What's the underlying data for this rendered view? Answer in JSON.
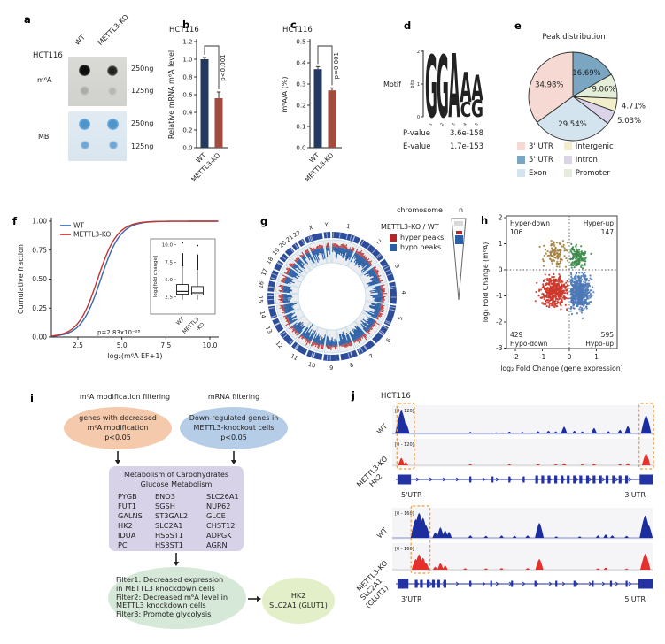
{
  "panels": {
    "a": {
      "letter": "a",
      "cell_line": "HCT116",
      "col_labels": [
        "WT",
        "METTL3-KO"
      ],
      "rows": [
        {
          "blot": "m⁶A",
          "amounts": [
            "250ng",
            "125ng"
          ]
        },
        {
          "blot": "MB",
          "amounts": [
            "250ng",
            "125ng"
          ]
        }
      ]
    },
    "b": {
      "letter": "b"
    },
    "c": {
      "letter": "c"
    },
    "d": {
      "letter": "d",
      "motif_label": "Motif",
      "stats": [
        {
          "label": "P-value",
          "value": "3.6e-158"
        },
        {
          "label": "E-value",
          "value": "1.7e-153"
        }
      ]
    },
    "e": {
      "letter": "e"
    },
    "f": {
      "letter": "f"
    },
    "g": {
      "letter": "g",
      "scale_title": "chromosome",
      "scale_n": "n",
      "ratio_label": "METTL3-KO / WT",
      "legend": [
        {
          "label": "hyper peaks",
          "color": "#b3262a"
        },
        {
          "label": "hypo peaks",
          "color": "#2a5fa5"
        }
      ]
    },
    "h": {
      "letter": "h"
    },
    "i": {
      "letter": "i",
      "left_header": "m⁶A modification filtering",
      "right_header": "mRNA filtering",
      "left_ellipse": [
        "genes with decreased",
        "m⁶A modification",
        "p<0.05"
      ],
      "right_ellipse": [
        "Down-regulated genes in",
        "METTL3-knockout cells",
        "p<0.05"
      ],
      "box_title": [
        "Metabolism of Carbohydrates",
        "Glucose Metabolism"
      ],
      "gene_columns": [
        [
          "PYGB",
          "FUT1",
          "GALNS",
          "HK2",
          "IDUA",
          "PC"
        ],
        [
          "ENO3",
          "SGSH",
          "ST3GAL2",
          "SLC2A1",
          "HS6ST1",
          "HS3ST1"
        ],
        [
          "SLC26A1",
          "NUP62",
          "GLCE",
          "CHST12",
          "ADPGK",
          "AGRN"
        ]
      ],
      "filter_lines": [
        "Filter1: Decreased expression",
        "in METTL3 knockdown cells",
        "Filter2: Decreased m⁶A level in",
        "METTL3 knockdown cells",
        "Filter3: Promote glycolysis"
      ],
      "result_lines": [
        "HK2",
        "SLC2A1 (GLUT1)"
      ]
    },
    "j": {
      "letter": "j",
      "cell_line": "HCT116"
    }
  },
  "chart_data": {
    "b": {
      "type": "bar",
      "title": "HCT116",
      "ylabel": "Relative mRNA m⁶A level",
      "categories": [
        "WT",
        "METTL3-KO"
      ],
      "values": [
        1.0,
        0.56
      ],
      "errors": [
        0.02,
        0.07
      ],
      "ylim": [
        0,
        1.2
      ],
      "ytick_step": 0.2,
      "significance": "p<0.001",
      "colors": [
        "#23395f",
        "#a34b3c"
      ]
    },
    "c": {
      "type": "bar",
      "title": "HCT116",
      "ylabel": "m⁶A/A (%)",
      "categories": [
        "WT",
        "METTL3-KO"
      ],
      "values": [
        0.37,
        0.27
      ],
      "errors": [
        0.012,
        0.012
      ],
      "ylim": [
        0,
        0.5
      ],
      "ytick_step": 0.1,
      "significance": "p=0.001",
      "colors": [
        "#23395f",
        "#a34b3c"
      ]
    },
    "d": {
      "type": "motif_logo",
      "ylabel": "bits",
      "yticks": [
        0,
        1,
        2
      ],
      "xticks": [
        "1",
        "2",
        "3",
        "4",
        "5"
      ],
      "positions": [
        [
          {
            "c": "G",
            "h": 1.9,
            "color": "#eba23c"
          }
        ],
        [
          {
            "c": "G",
            "h": 1.9,
            "color": "#eba23c"
          }
        ],
        [
          {
            "c": "A",
            "h": 1.95,
            "color": "#cc2a25"
          }
        ],
        [
          {
            "c": "A",
            "h": 0.92,
            "color": "#cc2a25"
          },
          {
            "c": "C",
            "h": 0.46,
            "color": "#2a4db5"
          }
        ],
        [
          {
            "c": "A",
            "h": 0.78,
            "color": "#cc2a25"
          },
          {
            "c": "G",
            "h": 0.52,
            "color": "#eba23c"
          }
        ]
      ]
    },
    "e": {
      "type": "pie",
      "title": "Peak distribution",
      "slices": [
        {
          "label": "5' UTR",
          "value": 16.69,
          "pct": "16.69%",
          "color": "#7aa6c2",
          "inside": true,
          "lr": 0.62
        },
        {
          "label": "Promoter",
          "value": 9.06,
          "pct": "9.06%",
          "color": "#e4eed9",
          "inside": true,
          "lr": 0.72
        },
        {
          "label": "Intergenic",
          "value": 4.71,
          "pct": "4.71%",
          "color": "#f1eec9",
          "inside": false,
          "lr": 1.1
        },
        {
          "label": "Intron",
          "value": 5.03,
          "pct": "5.03%",
          "color": "#dbd4e8",
          "inside": false,
          "lr": 1.12
        },
        {
          "label": "Exon",
          "value": 29.54,
          "pct": "29.54%",
          "color": "#d3e4ef",
          "inside": true,
          "lr": 0.62
        },
        {
          "label": "3' UTR",
          "value": 34.98,
          "pct": "34.98%",
          "color": "#f6d9d2",
          "inside": true,
          "lr": 0.6
        }
      ],
      "legend_order": [
        "3' UTR",
        "5' UTR",
        "Exon",
        "Intergenic",
        "Intron",
        "Promoter"
      ]
    },
    "f": {
      "type": "cdf",
      "xlabel": "log₂(m⁶A EF+1)",
      "ylabel": "Cumulative fraction",
      "pvalue": "p=2.83x10⁻²⁸",
      "xticks": [
        2.5,
        5.0,
        7.5,
        10.0
      ],
      "yticks": [
        0.0,
        0.25,
        0.5,
        0.75,
        1.0
      ],
      "series": [
        {
          "name": "WT",
          "color": "#3a68ac",
          "mu": 3.8,
          "s": 0.56
        },
        {
          "name": "METTL3-KO",
          "color": "#c13430",
          "mu": 3.62,
          "s": 0.56
        }
      ],
      "inset": {
        "ylabel": "log₂[fold change]",
        "yticks": [
          2.5,
          5.0,
          7.5,
          10.0
        ],
        "boxes": [
          {
            "label_lines": [
              "WT"
            ],
            "q1": 2.9,
            "q3": 4.3,
            "med": 3.3,
            "lo": 2.1,
            "hi": 6.9,
            "strip": 8.8,
            "dot": 10.3
          },
          {
            "label_lines": [
              "METTL3",
              "-KO"
            ],
            "q1": 2.8,
            "q3": 4.0,
            "med": 3.1,
            "lo": 2.1,
            "hi": 6.4,
            "strip": 8.6,
            "dot": 9.9
          }
        ]
      }
    },
    "g": {
      "type": "circos",
      "chromosomes": [
        "1",
        "2",
        "3",
        "4",
        "5",
        "6",
        "7",
        "8",
        "9",
        "10",
        "11",
        "12",
        "13",
        "14",
        "15",
        "16",
        "17",
        "18",
        "19",
        "20",
        "21",
        "22",
        "X",
        "Y"
      ],
      "sizes": [
        249,
        243,
        198,
        190,
        182,
        171,
        159,
        145,
        138,
        134,
        135,
        133,
        115,
        107,
        102,
        90,
        83,
        80,
        59,
        63,
        48,
        51,
        155,
        57
      ],
      "hyper_color": "#b3262a",
      "hypo_color": "#2a5fa5",
      "ideogram_color": "#2d4d9a"
    },
    "h": {
      "type": "scatter",
      "xlabel": "log₂ Fold Change (gene expression)",
      "ylabel": "log₂ Fold Change (m⁶A)",
      "xticks": [
        -2,
        -1,
        0,
        1
      ],
      "yticks": [
        -3,
        -2,
        -1,
        0,
        1,
        2
      ],
      "quadrants": [
        {
          "name": "Hyper-down",
          "count": 106,
          "color": "#a5803c",
          "cx": -0.5,
          "cy": 0.6,
          "sx": 0.38,
          "sy": 0.42,
          "xr": [
            -2.2,
            -0.05
          ],
          "yr": [
            0.06,
            2.0
          ],
          "corner": "tl"
        },
        {
          "name": "Hyper-up",
          "count": 147,
          "color": "#3e8a4c",
          "cx": 0.3,
          "cy": 0.5,
          "sx": 0.3,
          "sy": 0.36,
          "xr": [
            0.05,
            1.6
          ],
          "yr": [
            0.06,
            2.0
          ],
          "corner": "tr"
        },
        {
          "name": "Hypo-down",
          "count": 429,
          "color": "#cd372c",
          "cx": -0.55,
          "cy": -0.8,
          "sx": 0.45,
          "sy": 0.5,
          "xr": [
            -2.45,
            -0.05
          ],
          "yr": [
            -2.75,
            -0.06
          ],
          "corner": "bl"
        },
        {
          "name": "Hypo-up",
          "count": 595,
          "color": "#4e79b6",
          "cx": 0.35,
          "cy": -0.85,
          "sx": 0.35,
          "sy": 0.55,
          "xr": [
            0.05,
            1.75
          ],
          "yr": [
            -2.9,
            -0.06
          ],
          "corner": "br"
        }
      ]
    },
    "j": {
      "type": "coverage_tracks",
      "groups": [
        {
          "left_end": "5'UTR",
          "right_end": "3'UTR",
          "highlights": [
            [
              0.018,
              0.085
            ],
            [
              0.948,
              1.004
            ]
          ],
          "tracks": [
            {
              "name": "WT",
              "range": "[0 - 120]",
              "color": "#1c2da0",
              "peaks": [
                [
                  0.035,
                  1.0
                ],
                [
                  0.052,
                  0.45
                ],
                [
                  0.3,
                  0.07
                ],
                [
                  0.4,
                  0.05
                ],
                [
                  0.45,
                  0.08
                ],
                [
                  0.5,
                  0.07
                ],
                [
                  0.56,
                  0.1
                ],
                [
                  0.6,
                  0.12
                ],
                [
                  0.628,
                  0.09
                ],
                [
                  0.66,
                  0.3
                ],
                [
                  0.7,
                  0.12
                ],
                [
                  0.73,
                  0.09
                ],
                [
                  0.775,
                  0.24
                ],
                [
                  0.83,
                  0.1
                ],
                [
                  0.875,
                  0.16
                ],
                [
                  0.905,
                  0.32
                ],
                [
                  0.975,
                  0.78
                ]
              ]
            },
            {
              "name": "METTL3-KO",
              "range": "[0 - 120]",
              "color": "#e5302c",
              "peaks": [
                [
                  0.035,
                  0.35
                ],
                [
                  0.052,
                  0.15
                ],
                [
                  0.3,
                  0.05
                ],
                [
                  0.45,
                  0.05
                ],
                [
                  0.56,
                  0.06
                ],
                [
                  0.628,
                  0.05
                ],
                [
                  0.66,
                  0.1
                ],
                [
                  0.73,
                  0.05
                ],
                [
                  0.775,
                  0.09
                ],
                [
                  0.875,
                  0.07
                ],
                [
                  0.905,
                  0.1
                ],
                [
                  0.975,
                  0.55
                ]
              ]
            }
          ],
          "gene": {
            "name": "HK2",
            "thick": [
              [
                0.02,
                0.072
              ],
              [
                0.95,
                1.0
              ]
            ],
            "cluster": [
              0.555,
              0.578,
              0.602,
              0.628,
              0.652,
              0.676,
              0.7,
              0.724,
              0.75,
              0.775,
              0.8,
              0.825,
              0.85,
              0.875,
              0.9
            ],
            "small": [
              0.3,
              0.385,
              0.45,
              0.505
            ]
          }
        },
        {
          "left_end": "3'UTR",
          "right_end": "5'UTR",
          "highlights": [
            [
              0.072,
              0.145
            ]
          ],
          "tracks": [
            {
              "name": "WT",
              "range": "[0 - 160]",
              "color": "#1c2da0",
              "peaks": [
                [
                  0.09,
                  0.75
                ],
                [
                  0.103,
                  1.0
                ],
                [
                  0.118,
                  0.8
                ],
                [
                  0.13,
                  0.5
                ],
                [
                  0.165,
                  0.22
                ],
                [
                  0.185,
                  0.42
                ],
                [
                  0.203,
                  0.3
                ],
                [
                  0.218,
                  0.24
                ],
                [
                  0.3,
                  0.1
                ],
                [
                  0.36,
                  0.08
                ],
                [
                  0.42,
                  0.1
                ],
                [
                  0.47,
                  0.08
                ],
                [
                  0.52,
                  0.1
                ],
                [
                  0.565,
                  0.6
                ],
                [
                  0.63,
                  0.06
                ],
                [
                  0.72,
                  0.06
                ],
                [
                  0.79,
                  0.1
                ],
                [
                  0.82,
                  0.14
                ],
                [
                  0.845,
                  0.1
                ],
                [
                  0.9,
                  0.08
                ],
                [
                  0.972,
                  0.9
                ],
                [
                  0.985,
                  0.5
                ]
              ]
            },
            {
              "name": "METTL3-KO",
              "range": "[0 - 160]",
              "color": "#e5302c",
              "peaks": [
                [
                  0.09,
                  0.5
                ],
                [
                  0.103,
                  0.72
                ],
                [
                  0.118,
                  0.55
                ],
                [
                  0.13,
                  0.32
                ],
                [
                  0.165,
                  0.14
                ],
                [
                  0.185,
                  0.3
                ],
                [
                  0.203,
                  0.2
                ],
                [
                  0.28,
                  0.07
                ],
                [
                  0.36,
                  0.06
                ],
                [
                  0.42,
                  0.08
                ],
                [
                  0.52,
                  0.08
                ],
                [
                  0.565,
                  0.5
                ],
                [
                  0.79,
                  0.06
                ],
                [
                  0.82,
                  0.1
                ],
                [
                  0.9,
                  0.05
                ],
                [
                  0.972,
                  0.75
                ]
              ]
            }
          ],
          "gene": {
            "name": "SLC2A1 (GLUT1)",
            "thick": [
              [
                0.02,
                0.062
              ],
              [
                0.945,
                1.0
              ]
            ],
            "cluster": [
              0.092,
              0.112,
              0.138,
              0.158,
              0.178,
              0.202
            ],
            "small": [
              0.3,
              0.38,
              0.46,
              0.55,
              0.63,
              0.7,
              0.77,
              0.84,
              0.9
            ]
          }
        }
      ]
    }
  }
}
